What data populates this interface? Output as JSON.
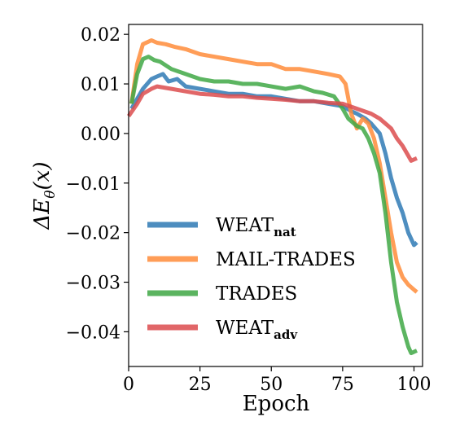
{
  "chart_data": {
    "type": "line",
    "xlabel": "Epoch",
    "ylabel": "ΔE_θ(x)",
    "xlim": [
      0,
      103
    ],
    "ylim": [
      -0.047,
      0.022
    ],
    "xticks": [
      0,
      25,
      50,
      75,
      100
    ],
    "xtick_labels": [
      "0",
      "25",
      "50",
      "75",
      "100"
    ],
    "yticks": [
      0.02,
      0.01,
      0.0,
      -0.01,
      -0.02,
      -0.03,
      -0.04
    ],
    "ytick_labels": [
      "0.02",
      "0.01",
      "0.00",
      "−0.01",
      "−0.02",
      "−0.03",
      "−0.04"
    ],
    "grid": false,
    "legend_position": "lower-left",
    "series": [
      {
        "name": "WEAT",
        "name_sub": "nat",
        "color": "#2f7ab5",
        "points": [
          [
            1,
            0.005
          ],
          [
            5,
            0.009
          ],
          [
            8,
            0.011
          ],
          [
            10,
            0.0115
          ],
          [
            12,
            0.012
          ],
          [
            14,
            0.0105
          ],
          [
            17,
            0.011
          ],
          [
            20,
            0.0095
          ],
          [
            25,
            0.009
          ],
          [
            30,
            0.0085
          ],
          [
            35,
            0.008
          ],
          [
            40,
            0.008
          ],
          [
            45,
            0.0075
          ],
          [
            50,
            0.0075
          ],
          [
            55,
            0.007
          ],
          [
            60,
            0.0065
          ],
          [
            65,
            0.0065
          ],
          [
            70,
            0.006
          ],
          [
            75,
            0.0055
          ],
          [
            78,
            0.0045
          ],
          [
            80,
            0.004
          ],
          [
            83,
            0.003
          ],
          [
            85,
            0.002
          ],
          [
            88,
            0.0
          ],
          [
            90,
            -0.004
          ],
          [
            92,
            -0.009
          ],
          [
            94,
            -0.013
          ],
          [
            96,
            -0.016
          ],
          [
            98,
            -0.02
          ],
          [
            100,
            -0.0225
          ],
          [
            101,
            -0.022
          ]
        ]
      },
      {
        "name": "MAIL-TRADES",
        "name_sub": "",
        "color": "#ff8c3a",
        "points": [
          [
            1,
            0.006
          ],
          [
            3,
            0.014
          ],
          [
            5,
            0.018
          ],
          [
            8,
            0.0188
          ],
          [
            10,
            0.0183
          ],
          [
            13,
            0.018
          ],
          [
            16,
            0.0175
          ],
          [
            20,
            0.017
          ],
          [
            25,
            0.016
          ],
          [
            30,
            0.0155
          ],
          [
            35,
            0.015
          ],
          [
            40,
            0.0145
          ],
          [
            45,
            0.014
          ],
          [
            50,
            0.014
          ],
          [
            55,
            0.013
          ],
          [
            60,
            0.013
          ],
          [
            65,
            0.0125
          ],
          [
            70,
            0.012
          ],
          [
            74,
            0.0115
          ],
          [
            76,
            0.01
          ],
          [
            78,
            0.004
          ],
          [
            80,
            0.001
          ],
          [
            82,
            0.003
          ],
          [
            84,
            0.002
          ],
          [
            86,
            -0.001
          ],
          [
            88,
            -0.006
          ],
          [
            90,
            -0.013
          ],
          [
            92,
            -0.02
          ],
          [
            94,
            -0.026
          ],
          [
            96,
            -0.029
          ],
          [
            98,
            -0.0305
          ],
          [
            100,
            -0.0315
          ],
          [
            101,
            -0.032
          ]
        ]
      },
      {
        "name": "TRADES",
        "name_sub": "",
        "color": "#3fa845",
        "points": [
          [
            1,
            0.006
          ],
          [
            3,
            0.012
          ],
          [
            5,
            0.015
          ],
          [
            7,
            0.0155
          ],
          [
            9,
            0.0148
          ],
          [
            11,
            0.0145
          ],
          [
            15,
            0.013
          ],
          [
            20,
            0.012
          ],
          [
            25,
            0.011
          ],
          [
            30,
            0.0105
          ],
          [
            35,
            0.0105
          ],
          [
            40,
            0.01
          ],
          [
            45,
            0.01
          ],
          [
            50,
            0.0095
          ],
          [
            55,
            0.009
          ],
          [
            60,
            0.0095
          ],
          [
            65,
            0.0085
          ],
          [
            68,
            0.0082
          ],
          [
            72,
            0.0075
          ],
          [
            75,
            0.005
          ],
          [
            77,
            0.003
          ],
          [
            80,
            0.0015
          ],
          [
            82,
            0.001
          ],
          [
            84,
            -0.001
          ],
          [
            86,
            -0.004
          ],
          [
            88,
            -0.008
          ],
          [
            90,
            -0.016
          ],
          [
            92,
            -0.026
          ],
          [
            94,
            -0.034
          ],
          [
            96,
            -0.039
          ],
          [
            98,
            -0.043
          ],
          [
            99,
            -0.0443
          ],
          [
            101,
            -0.0438
          ]
        ]
      },
      {
        "name": "WEAT",
        "name_sub": "adv",
        "color": "#dc4c4e",
        "points": [
          [
            0,
            0.0035
          ],
          [
            3,
            0.006
          ],
          [
            5,
            0.008
          ],
          [
            8,
            0.009
          ],
          [
            10,
            0.0095
          ],
          [
            15,
            0.009
          ],
          [
            20,
            0.0085
          ],
          [
            25,
            0.008
          ],
          [
            30,
            0.0078
          ],
          [
            35,
            0.0075
          ],
          [
            40,
            0.0075
          ],
          [
            45,
            0.0072
          ],
          [
            50,
            0.007
          ],
          [
            55,
            0.0068
          ],
          [
            60,
            0.0065
          ],
          [
            65,
            0.0065
          ],
          [
            70,
            0.0062
          ],
          [
            75,
            0.006
          ],
          [
            80,
            0.005
          ],
          [
            85,
            0.004
          ],
          [
            88,
            0.003
          ],
          [
            90,
            0.002
          ],
          [
            92,
            0.001
          ],
          [
            94,
            -0.001
          ],
          [
            96,
            -0.0025
          ],
          [
            98,
            -0.0045
          ],
          [
            99,
            -0.0055
          ],
          [
            101,
            -0.005
          ]
        ]
      }
    ]
  }
}
